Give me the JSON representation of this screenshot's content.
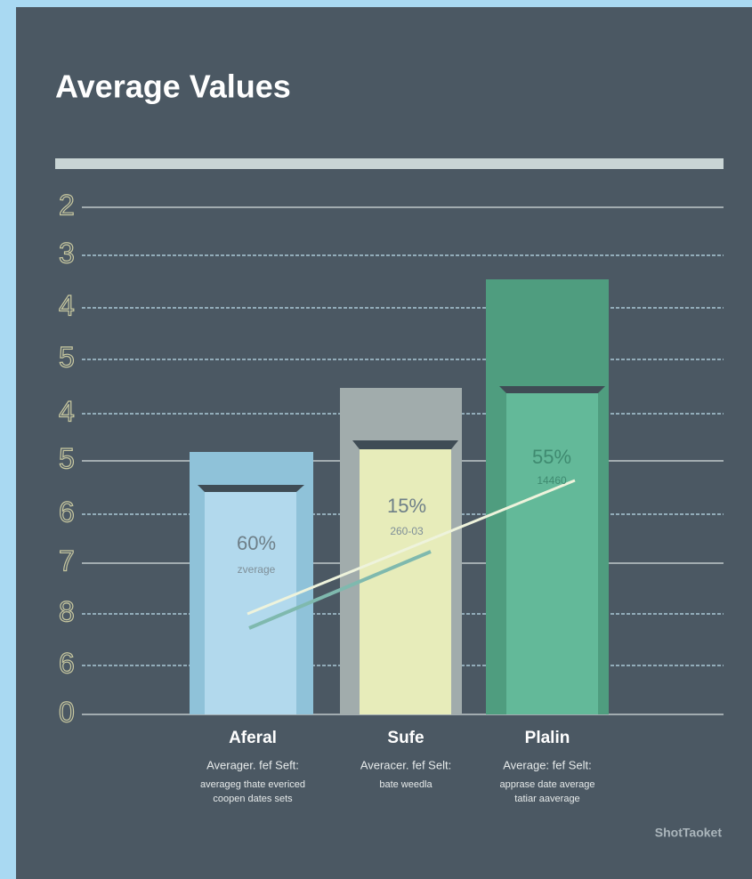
{
  "header": {
    "title": "Average Values"
  },
  "axis_labels": [
    "2",
    "3",
    "4",
    "5",
    "4",
    "5",
    "6",
    "7",
    "8",
    "6",
    "0"
  ],
  "bars": [
    {
      "percent": "60%",
      "note": "zverage",
      "label": "Aferal",
      "subtitle": "Averager. fef Seft:",
      "description": [
        "averageg thate evericed",
        "coopen dates sets"
      ]
    },
    {
      "percent": "15%",
      "note": "260-03",
      "label": "Sufe",
      "subtitle": "Averacer. fef Selt:",
      "description": [
        "bate weedla"
      ]
    },
    {
      "percent": "55%",
      "note": "14460",
      "label": "Plalin",
      "subtitle": "Average: fef Selt:",
      "description": [
        "apprase date average",
        "tatiar aaverage"
      ]
    }
  ],
  "footer": {
    "brand": "ShotTaoket"
  }
}
